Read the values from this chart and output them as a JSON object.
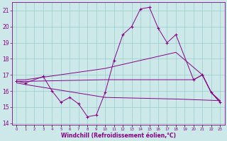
{
  "xlabel": "Windchill (Refroidissement éolien,°C)",
  "bg_color": "#cce8e8",
  "grid_color": "#99cccc",
  "line_color": "#880088",
  "line1_x": [
    0,
    1,
    3,
    4,
    5,
    6,
    7,
    8,
    9,
    10,
    11,
    12,
    13,
    14,
    15,
    16,
    17,
    18,
    20,
    21,
    22,
    23
  ],
  "line1_y": [
    16.6,
    16.5,
    16.9,
    16.0,
    15.3,
    15.6,
    15.2,
    14.4,
    14.5,
    15.9,
    17.9,
    19.5,
    20.0,
    21.1,
    21.2,
    19.9,
    19.0,
    19.5,
    16.7,
    17.0,
    15.9,
    15.3
  ],
  "line2_x": [
    0,
    1,
    10,
    18,
    21,
    22,
    23
  ],
  "line2_y": [
    16.7,
    16.7,
    17.4,
    18.4,
    17.0,
    15.9,
    15.4
  ],
  "line3_x": [
    0,
    1,
    10,
    18,
    20,
    21,
    22,
    23
  ],
  "line3_y": [
    16.6,
    16.6,
    16.7,
    16.7,
    16.7,
    17.0,
    15.9,
    15.3
  ],
  "line4_x": [
    0,
    1,
    10,
    18,
    23
  ],
  "line4_y": [
    16.5,
    16.4,
    15.6,
    15.5,
    15.4
  ],
  "ylim": [
    13.9,
    21.5
  ],
  "xlim": [
    -0.5,
    23.5
  ],
  "yticks": [
    14,
    15,
    16,
    17,
    18,
    19,
    20,
    21
  ],
  "xtick_labels": [
    "0",
    "1",
    "2",
    "3",
    "4",
    "5",
    "6",
    "7",
    "8",
    "9",
    "10",
    "11",
    "12",
    "13",
    "14",
    "15",
    "16",
    "17",
    "18",
    "19",
    "20",
    "21",
    "22",
    "23"
  ]
}
